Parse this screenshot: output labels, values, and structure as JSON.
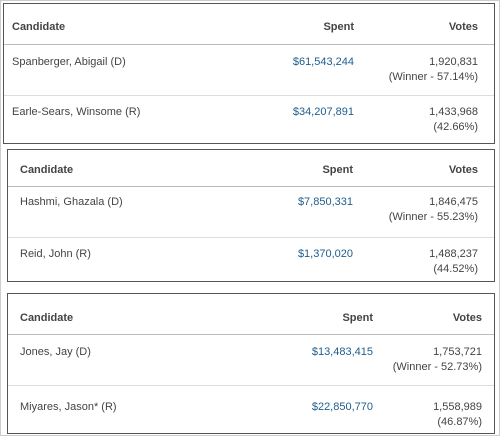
{
  "tables": [
    {
      "header": [
        "Candidate",
        "Spent",
        "Votes"
      ],
      "rows": [
        {
          "candidate": "Spanberger, Abigail (D)",
          "spent": "$61,543,244",
          "votes": "1,920,831",
          "note": "(Winner - 57.14%)"
        },
        {
          "candidate": "Earle-Sears, Winsome (R)",
          "spent": "$34,207,891",
          "votes": "1,433,968",
          "note": "(42.66%)"
        }
      ]
    },
    {
      "header": [
        "Candidate",
        "Spent",
        "Votes"
      ],
      "rows": [
        {
          "candidate": "Hashmi, Ghazala (D)",
          "spent": "$7,850,331",
          "votes": "1,846,475",
          "note": "(Winner - 55.23%)"
        },
        {
          "candidate": "Reid, John (R)",
          "spent": "$1,370,020",
          "votes": "1,488,237",
          "note": "(44.52%)"
        }
      ]
    },
    {
      "header": [
        "Candidate",
        "Spent",
        "Votes"
      ],
      "rows": [
        {
          "candidate": "Jones, Jay (D)",
          "spent": "$13,483,415",
          "votes": "1,753,721",
          "note": "(Winner - 52.73%)"
        },
        {
          "candidate": "Miyares, Jason* (R)",
          "spent": "$22,850,770",
          "votes": "1,558,989",
          "note": "(46.87%)"
        }
      ]
    }
  ]
}
